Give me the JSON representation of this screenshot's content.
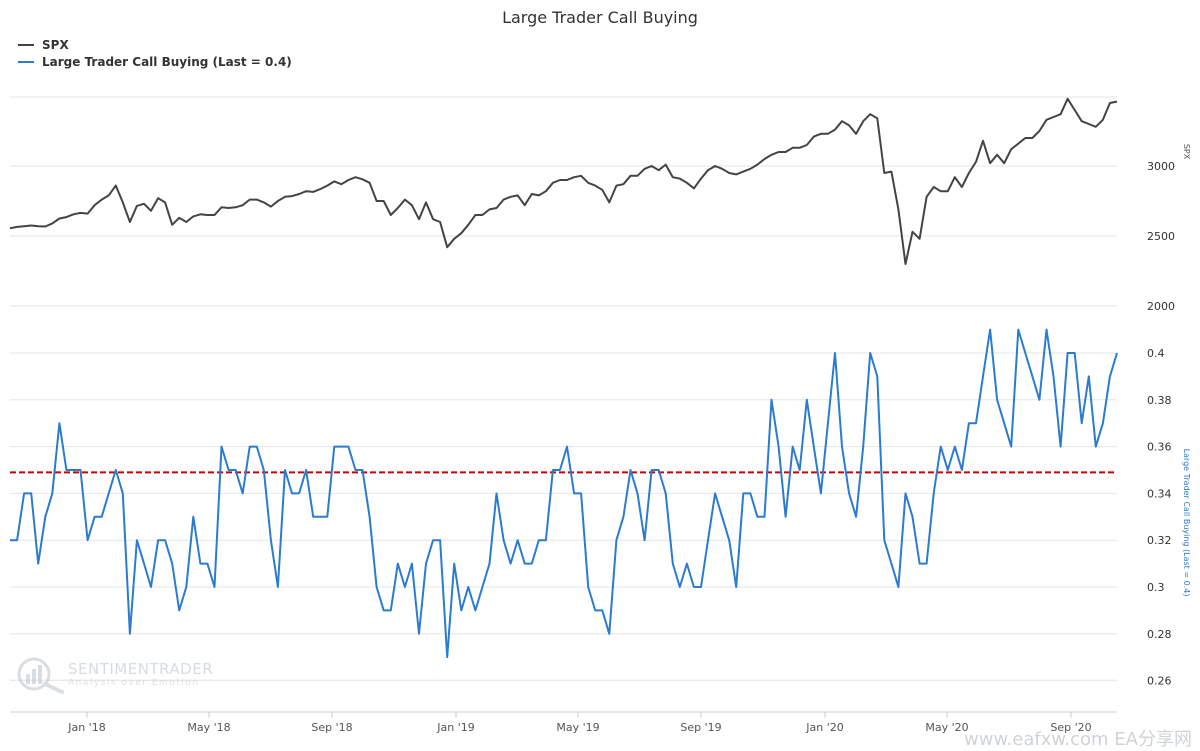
{
  "chart_data": {
    "type": "line",
    "title": "Large Trader Call Buying",
    "legend_position": "top-left",
    "grid": true,
    "x_ticks": [
      "Jan '18",
      "May '18",
      "Sep '18",
      "Jan '19",
      "May '19",
      "Sep '19",
      "Jan '20",
      "May '20",
      "Sep '20"
    ],
    "panels": [
      {
        "id": "spx",
        "ylabel": "SPX",
        "ylim": [
          2000,
          3500
        ],
        "y_ticks": [
          2000,
          2500,
          3000
        ],
        "series": [
          {
            "name": "SPX",
            "color": "#444444",
            "values": [
              2555,
              2565,
              2570,
              2575,
              2570,
              2568,
              2590,
              2625,
              2635,
              2655,
              2665,
              2660,
              2720,
              2760,
              2790,
              2860,
              2740,
              2600,
              2715,
              2730,
              2680,
              2770,
              2740,
              2580,
              2630,
              2600,
              2640,
              2655,
              2650,
              2650,
              2705,
              2700,
              2705,
              2720,
              2760,
              2760,
              2740,
              2710,
              2750,
              2780,
              2785,
              2800,
              2820,
              2815,
              2835,
              2860,
              2890,
              2870,
              2900,
              2920,
              2905,
              2880,
              2750,
              2750,
              2650,
              2700,
              2760,
              2720,
              2620,
              2740,
              2620,
              2600,
              2420,
              2480,
              2520,
              2580,
              2650,
              2650,
              2690,
              2700,
              2760,
              2780,
              2790,
              2720,
              2800,
              2790,
              2820,
              2880,
              2900,
              2900,
              2920,
              2930,
              2880,
              2860,
              2830,
              2740,
              2860,
              2870,
              2930,
              2930,
              2980,
              3000,
              2970,
              3010,
              2920,
              2910,
              2880,
              2840,
              2910,
              2970,
              3000,
              2980,
              2950,
              2940,
              2960,
              2980,
              3010,
              3050,
              3080,
              3100,
              3100,
              3130,
              3130,
              3150,
              3210,
              3230,
              3230,
              3260,
              3320,
              3290,
              3230,
              3320,
              3370,
              3340,
              2950,
              2960,
              2690,
              2300,
              2530,
              2480,
              2780,
              2850,
              2820,
              2820,
              2920,
              2850,
              2950,
              3030,
              3180,
              3020,
              3080,
              3020,
              3120,
              3160,
              3200,
              3200,
              3250,
              3330,
              3350,
              3370,
              3480,
              3400,
              3320,
              3300,
              3280,
              3330,
              3450,
              3460
            ]
          }
        ]
      },
      {
        "id": "ltcb",
        "ylabel": "Large Trader Call Buying (Last = 0.4)",
        "ylim": [
          0.25,
          0.415
        ],
        "y_ticks": [
          0.26,
          0.28,
          0.3,
          0.32,
          0.34,
          0.36,
          0.38,
          0.4
        ],
        "reference_line": 0.349,
        "reference_color": "#cc0000",
        "series": [
          {
            "name": "Large Trader Call Buying (Last = 0.4)",
            "color": "#2b7bd0",
            "values": [
              0.32,
              0.32,
              0.34,
              0.34,
              0.31,
              0.33,
              0.34,
              0.37,
              0.35,
              0.35,
              0.35,
              0.32,
              0.33,
              0.33,
              0.34,
              0.35,
              0.34,
              0.28,
              0.32,
              0.31,
              0.3,
              0.32,
              0.32,
              0.31,
              0.29,
              0.3,
              0.33,
              0.31,
              0.31,
              0.3,
              0.36,
              0.35,
              0.35,
              0.34,
              0.36,
              0.36,
              0.35,
              0.32,
              0.3,
              0.35,
              0.34,
              0.34,
              0.35,
              0.33,
              0.33,
              0.33,
              0.36,
              0.36,
              0.36,
              0.35,
              0.35,
              0.33,
              0.3,
              0.29,
              0.29,
              0.31,
              0.3,
              0.31,
              0.28,
              0.31,
              0.32,
              0.32,
              0.27,
              0.31,
              0.29,
              0.3,
              0.29,
              0.3,
              0.31,
              0.34,
              0.32,
              0.31,
              0.32,
              0.31,
              0.31,
              0.32,
              0.32,
              0.35,
              0.35,
              0.36,
              0.34,
              0.34,
              0.3,
              0.29,
              0.29,
              0.28,
              0.32,
              0.33,
              0.35,
              0.34,
              0.32,
              0.35,
              0.35,
              0.34,
              0.31,
              0.3,
              0.31,
              0.3,
              0.3,
              0.32,
              0.34,
              0.33,
              0.32,
              0.3,
              0.34,
              0.34,
              0.33,
              0.33,
              0.38,
              0.36,
              0.33,
              0.36,
              0.35,
              0.38,
              0.36,
              0.34,
              0.37,
              0.4,
              0.36,
              0.34,
              0.33,
              0.36,
              0.4,
              0.39,
              0.32,
              0.31,
              0.3,
              0.34,
              0.33,
              0.31,
              0.31,
              0.34,
              0.36,
              0.35,
              0.36,
              0.35,
              0.37,
              0.37,
              0.39,
              0.41,
              0.38,
              0.37,
              0.36,
              0.41,
              0.4,
              0.39,
              0.38,
              0.41,
              0.39,
              0.36,
              0.4,
              0.4,
              0.37,
              0.39,
              0.36,
              0.37,
              0.39,
              0.4
            ]
          }
        ]
      }
    ]
  },
  "watermark": {
    "brand": "SENTIMENTRADER",
    "tagline": "Analysis over Emotion"
  },
  "site_mark": "www.eafxw.com  EA分享网"
}
